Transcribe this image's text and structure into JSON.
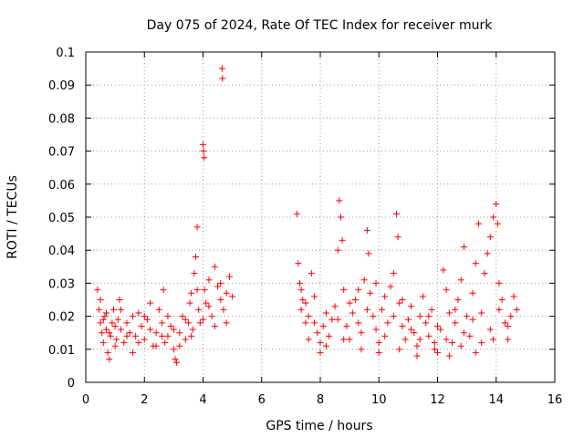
{
  "chart_data": {
    "type": "scatter",
    "title": "Day 075 of 2024, Rate Of TEC Index for receiver murk",
    "xlabel": "GPS time / hours",
    "ylabel": "ROTI / TECUs",
    "xlim": [
      0,
      16
    ],
    "ylim": [
      0,
      0.1
    ],
    "xticks": [
      0,
      2,
      4,
      6,
      8,
      10,
      12,
      14,
      16
    ],
    "yticks": [
      0,
      0.01,
      0.02,
      0.03,
      0.04,
      0.05,
      0.06,
      0.07,
      0.08,
      0.09,
      0.1
    ],
    "xtick_labels": [
      "0",
      "2",
      "4",
      "6",
      "8",
      "10",
      "12",
      "14",
      "16"
    ],
    "ytick_labels": [
      "0",
      "0.01",
      "0.02",
      "0.03",
      "0.04",
      "0.05",
      "0.06",
      "0.07",
      "0.08",
      "0.09",
      "0.1"
    ],
    "grid": true,
    "marker": "+",
    "color": "#ff0000",
    "series": [
      {
        "name": "ROTI",
        "points": [
          [
            0.4,
            0.028
          ],
          [
            0.45,
            0.022
          ],
          [
            0.5,
            0.018
          ],
          [
            0.55,
            0.015
          ],
          [
            0.6,
            0.012
          ],
          [
            0.65,
            0.02
          ],
          [
            0.7,
            0.016
          ],
          [
            0.75,
            0.009
          ],
          [
            0.8,
            0.007
          ],
          [
            0.85,
            0.014
          ],
          [
            0.9,
            0.018
          ],
          [
            0.95,
            0.022
          ],
          [
            1.0,
            0.017
          ],
          [
            1.05,
            0.013
          ],
          [
            1.1,
            0.019
          ],
          [
            1.15,
            0.025
          ],
          [
            1.2,
            0.016
          ],
          [
            1.3,
            0.012
          ],
          [
            1.4,
            0.018
          ],
          [
            1.5,
            0.015
          ],
          [
            1.6,
            0.009
          ],
          [
            1.7,
            0.014
          ],
          [
            1.8,
            0.021
          ],
          [
            1.9,
            0.017
          ],
          [
            2.0,
            0.013
          ],
          [
            2.1,
            0.019
          ],
          [
            2.2,
            0.016
          ],
          [
            2.3,
            0.011
          ],
          [
            2.4,
            0.015
          ],
          [
            2.5,
            0.022
          ],
          [
            2.6,
            0.018
          ],
          [
            2.65,
            0.028
          ],
          [
            2.7,
            0.012
          ],
          [
            2.8,
            0.014
          ],
          [
            2.9,
            0.017
          ],
          [
            3.0,
            0.01
          ],
          [
            3.05,
            0.007
          ],
          [
            3.1,
            0.006
          ],
          [
            3.2,
            0.015
          ],
          [
            3.3,
            0.02
          ],
          [
            3.4,
            0.013
          ],
          [
            3.5,
            0.018
          ],
          [
            3.55,
            0.024
          ],
          [
            3.6,
            0.027
          ],
          [
            3.65,
            0.016
          ],
          [
            3.7,
            0.033
          ],
          [
            3.75,
            0.038
          ],
          [
            3.8,
            0.047
          ],
          [
            3.85,
            0.022
          ],
          [
            3.9,
            0.018
          ],
          [
            4.0,
            0.072
          ],
          [
            4.02,
            0.07
          ],
          [
            4.04,
            0.068
          ],
          [
            4.05,
            0.028
          ],
          [
            4.1,
            0.024
          ],
          [
            4.2,
            0.031
          ],
          [
            4.3,
            0.02
          ],
          [
            4.4,
            0.035
          ],
          [
            4.5,
            0.029
          ],
          [
            4.6,
            0.025
          ],
          [
            4.65,
            0.095
          ],
          [
            4.66,
            0.092
          ],
          [
            4.7,
            0.022
          ],
          [
            4.8,
            0.018
          ],
          [
            4.9,
            0.032
          ],
          [
            5.0,
            0.026
          ],
          [
            0.5,
            0.025
          ],
          [
            0.6,
            0.019
          ],
          [
            0.7,
            0.021
          ],
          [
            0.8,
            0.015
          ],
          [
            1.0,
            0.011
          ],
          [
            1.2,
            0.022
          ],
          [
            1.4,
            0.014
          ],
          [
            1.6,
            0.02
          ],
          [
            1.8,
            0.012
          ],
          [
            2.0,
            0.02
          ],
          [
            2.2,
            0.024
          ],
          [
            2.4,
            0.011
          ],
          [
            2.6,
            0.014
          ],
          [
            2.8,
            0.02
          ],
          [
            3.0,
            0.016
          ],
          [
            3.2,
            0.011
          ],
          [
            3.4,
            0.019
          ],
          [
            3.6,
            0.014
          ],
          [
            3.8,
            0.028
          ],
          [
            4.0,
            0.019
          ],
          [
            4.2,
            0.023
          ],
          [
            4.4,
            0.017
          ],
          [
            4.6,
            0.03
          ],
          [
            4.8,
            0.027
          ],
          [
            7.2,
            0.051
          ],
          [
            7.25,
            0.036
          ],
          [
            7.3,
            0.03
          ],
          [
            7.35,
            0.022
          ],
          [
            7.4,
            0.025
          ],
          [
            7.5,
            0.018
          ],
          [
            7.6,
            0.02
          ],
          [
            7.7,
            0.033
          ],
          [
            7.8,
            0.026
          ],
          [
            7.9,
            0.015
          ],
          [
            8.0,
            0.012
          ],
          [
            8.1,
            0.017
          ],
          [
            8.2,
            0.021
          ],
          [
            8.3,
            0.014
          ],
          [
            8.4,
            0.019
          ],
          [
            8.5,
            0.023
          ],
          [
            8.6,
            0.04
          ],
          [
            8.65,
            0.055
          ],
          [
            8.7,
            0.05
          ],
          [
            8.75,
            0.043
          ],
          [
            8.8,
            0.028
          ],
          [
            8.9,
            0.017
          ],
          [
            9.0,
            0.013
          ],
          [
            9.1,
            0.021
          ],
          [
            9.2,
            0.025
          ],
          [
            9.3,
            0.018
          ],
          [
            9.4,
            0.015
          ],
          [
            9.5,
            0.031
          ],
          [
            9.6,
            0.046
          ],
          [
            9.65,
            0.039
          ],
          [
            9.7,
            0.027
          ],
          [
            9.8,
            0.02
          ],
          [
            9.9,
            0.016
          ],
          [
            10.0,
            0.012
          ],
          [
            10.1,
            0.022
          ],
          [
            10.2,
            0.026
          ],
          [
            10.3,
            0.018
          ],
          [
            10.4,
            0.029
          ],
          [
            10.5,
            0.033
          ],
          [
            10.6,
            0.051
          ],
          [
            10.65,
            0.044
          ],
          [
            10.7,
            0.024
          ],
          [
            10.8,
            0.017
          ],
          [
            10.9,
            0.013
          ],
          [
            11.0,
            0.019
          ],
          [
            11.1,
            0.023
          ],
          [
            11.2,
            0.015
          ],
          [
            11.3,
            0.011
          ],
          [
            11.4,
            0.02
          ],
          [
            11.5,
            0.026
          ],
          [
            11.6,
            0.018
          ],
          [
            11.7,
            0.014
          ],
          [
            11.8,
            0.022
          ],
          [
            11.9,
            0.01
          ],
          [
            12.0,
            0.009
          ],
          [
            12.1,
            0.016
          ],
          [
            12.2,
            0.034
          ],
          [
            12.3,
            0.028
          ],
          [
            12.4,
            0.021
          ],
          [
            12.5,
            0.012
          ],
          [
            12.6,
            0.018
          ],
          [
            12.7,
            0.025
          ],
          [
            12.8,
            0.031
          ],
          [
            12.9,
            0.041
          ],
          [
            13.0,
            0.02
          ],
          [
            13.1,
            0.014
          ],
          [
            13.2,
            0.027
          ],
          [
            13.3,
            0.036
          ],
          [
            13.4,
            0.048
          ],
          [
            13.5,
            0.021
          ],
          [
            13.6,
            0.033
          ],
          [
            13.7,
            0.039
          ],
          [
            13.8,
            0.044
          ],
          [
            13.9,
            0.05
          ],
          [
            14.0,
            0.054
          ],
          [
            14.05,
            0.048
          ],
          [
            14.1,
            0.03
          ],
          [
            14.2,
            0.025
          ],
          [
            14.3,
            0.018
          ],
          [
            14.4,
            0.013
          ],
          [
            14.5,
            0.02
          ],
          [
            14.6,
            0.026
          ],
          [
            14.7,
            0.022
          ],
          [
            7.5,
            0.024
          ],
          [
            7.8,
            0.018
          ],
          [
            8.2,
            0.011
          ],
          [
            8.6,
            0.019
          ],
          [
            9.0,
            0.024
          ],
          [
            9.3,
            0.028
          ],
          [
            9.6,
            0.022
          ],
          [
            9.9,
            0.03
          ],
          [
            10.2,
            0.014
          ],
          [
            10.5,
            0.02
          ],
          [
            10.8,
            0.025
          ],
          [
            11.1,
            0.016
          ],
          [
            11.4,
            0.013
          ],
          [
            11.7,
            0.02
          ],
          [
            12.0,
            0.017
          ],
          [
            12.3,
            0.013
          ],
          [
            12.6,
            0.022
          ],
          [
            12.9,
            0.015
          ],
          [
            13.2,
            0.019
          ],
          [
            13.5,
            0.012
          ],
          [
            13.8,
            0.016
          ],
          [
            14.1,
            0.022
          ],
          [
            14.4,
            0.017
          ],
          [
            7.35,
            0.028
          ],
          [
            7.6,
            0.013
          ],
          [
            8.0,
            0.009
          ],
          [
            8.8,
            0.013
          ],
          [
            9.4,
            0.01
          ],
          [
            10.0,
            0.009
          ],
          [
            10.7,
            0.01
          ],
          [
            11.3,
            0.008
          ],
          [
            11.9,
            0.012
          ],
          [
            12.4,
            0.008
          ],
          [
            12.8,
            0.011
          ],
          [
            13.3,
            0.009
          ],
          [
            13.9,
            0.013
          ]
        ]
      }
    ]
  }
}
